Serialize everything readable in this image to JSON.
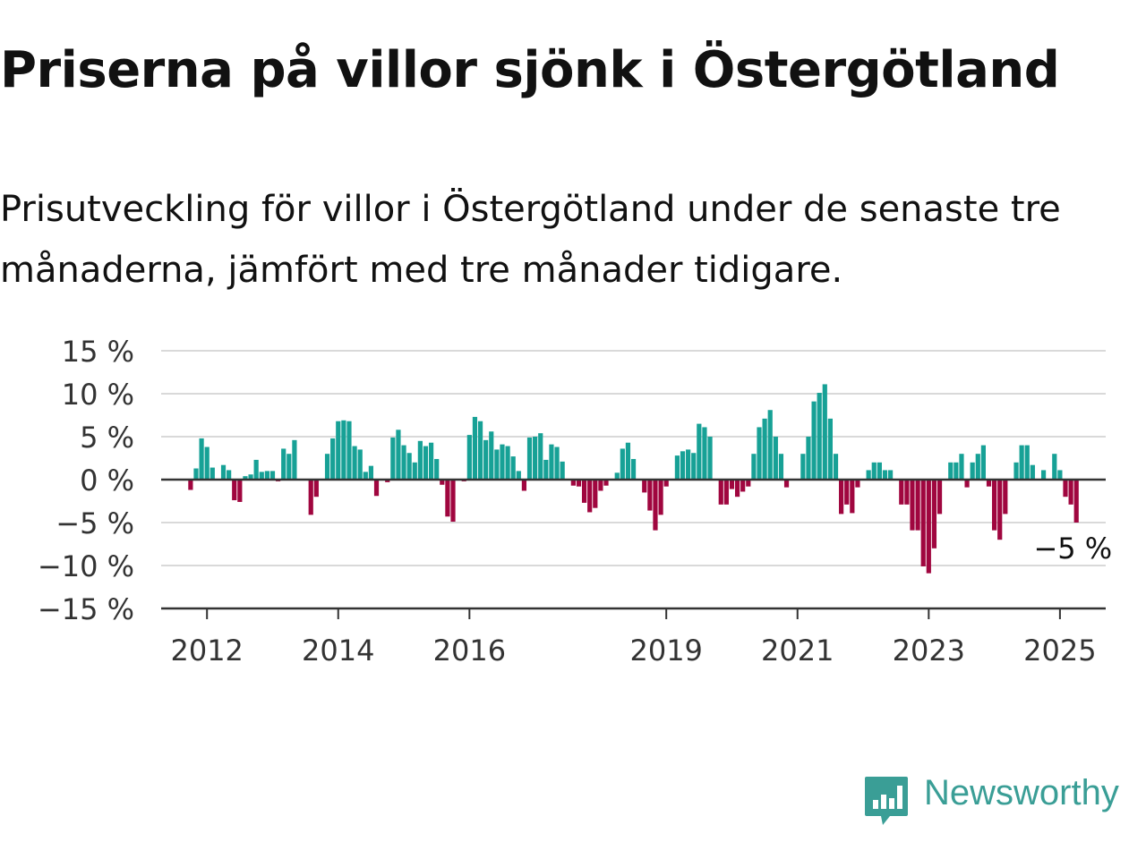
{
  "title": "Priserna på villor sjönk i Östergötland",
  "subtitle": "Prisutveckling för villor i Östergötland under de senaste tre månaderna, jämfört med tre månader tidigare.",
  "logo": {
    "text": "Newsworthy",
    "icon": "newsworthy-chart-icon",
    "color": "#3a9e96"
  },
  "chart_data": {
    "type": "bar",
    "x_start": {
      "year": 2011,
      "month": 10
    },
    "ylim": [
      -15,
      15
    ],
    "yticks": [
      15,
      10,
      5,
      0,
      -5,
      -10,
      -15
    ],
    "ytick_labels": [
      "15 %",
      "10 %",
      "5 %",
      "0 %",
      "−5 %",
      "−10 %",
      "−15 %"
    ],
    "xticks": [
      "2012",
      "2014",
      "2016",
      "2019",
      "2021",
      "2023",
      "2025"
    ],
    "positive_color": "#17a196",
    "negative_color": "#a0063f",
    "annotation": "−5 %",
    "values": [
      -1.2,
      1.3,
      4.8,
      3.8,
      1.4,
      0,
      1.7,
      1.1,
      -2.4,
      -2.6,
      0.4,
      0.6,
      2.3,
      0.9,
      1.0,
      1.0,
      -0.2,
      3.6,
      3.0,
      4.6,
      0,
      0,
      -4.1,
      -2.0,
      0,
      3.0,
      4.8,
      6.8,
      6.9,
      6.8,
      3.9,
      3.5,
      0.9,
      1.6,
      -1.9,
      0,
      -0.3,
      4.9,
      5.8,
      4.0,
      3.1,
      2.0,
      4.5,
      3.9,
      4.3,
      2.4,
      -0.6,
      -4.3,
      -4.9,
      0,
      -0.2,
      5.2,
      7.3,
      6.8,
      4.6,
      5.6,
      3.5,
      4.1,
      3.9,
      2.7,
      1.0,
      -1.3,
      4.9,
      5.0,
      5.4,
      2.3,
      4.1,
      3.8,
      2.1,
      0,
      -0.7,
      -0.8,
      -2.7,
      -3.8,
      -3.3,
      -1.3,
      -0.7,
      0,
      0.8,
      3.6,
      4.3,
      2.4,
      0,
      -1.5,
      -3.6,
      -5.9,
      -4.1,
      -0.8,
      0,
      2.8,
      3.3,
      3.5,
      3.1,
      6.5,
      6.1,
      5.0,
      0,
      -2.9,
      -2.9,
      -1.1,
      -2.0,
      -1.4,
      -0.8,
      3.0,
      6.1,
      7.1,
      8.1,
      5.0,
      3.0,
      -0.9,
      0,
      0,
      3.0,
      5.0,
      9.1,
      10.1,
      11.1,
      7.1,
      3.0,
      -4.0,
      -2.9,
      -3.9,
      -0.9,
      0,
      1.1,
      2.0,
      2.0,
      1.1,
      1.1,
      0,
      -2.9,
      -2.9,
      -5.9,
      -5.9,
      -10.1,
      -10.9,
      -8.0,
      -4.0,
      0,
      2.0,
      2.0,
      3.0,
      -0.9,
      2.0,
      3.0,
      4.0,
      -0.8,
      -5.9,
      -7.0,
      -4.0,
      0,
      2.0,
      4.0,
      4.0,
      1.7,
      0,
      1.1,
      0,
      3.0,
      1.1,
      -2.0,
      -2.9,
      -5.0
    ]
  }
}
